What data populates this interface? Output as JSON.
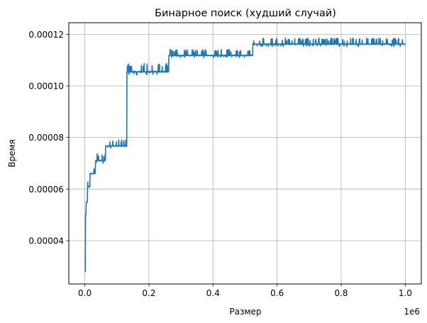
{
  "chart_data": {
    "type": "line",
    "title": "Бинарное поиск (худший случай)",
    "xlabel": "Размер",
    "ylabel": "Время",
    "x_offset_label": "1e6",
    "xlim": [
      -0.05,
      1.05
    ],
    "ylim": [
      2.32e-05,
      0.0001245
    ],
    "grid": true,
    "line_color": "#1f77b4",
    "x_ticks": [
      0.0,
      0.2,
      0.4,
      0.6,
      0.8,
      1.0
    ],
    "x_tick_labels": [
      "0.0",
      "0.2",
      "0.4",
      "0.6",
      "0.8",
      "1.0"
    ],
    "y_ticks": [
      4e-05,
      6e-05,
      8e-05,
      0.0001,
      0.00012
    ],
    "y_tick_labels": [
      "0.00004",
      "0.00006",
      "0.00008",
      "0.00010",
      "0.00012"
    ],
    "series": [
      {
        "x_units": "1e6",
        "steps": [
          {
            "x0": 0.0,
            "x1": 0.002,
            "y": 2.8e-05,
            "amp": 0.0
          },
          {
            "x0": 0.002,
            "x1": 0.004,
            "y": 5e-05,
            "amp": 1.5e-06
          },
          {
            "x0": 0.004,
            "x1": 0.008,
            "y": 5.5e-05,
            "amp": 1e-06
          },
          {
            "x0": 0.008,
            "x1": 0.016,
            "y": 6.1e-05,
            "amp": 1.2e-06
          },
          {
            "x0": 0.016,
            "x1": 0.033,
            "y": 6.6e-05,
            "amp": 1.2e-06
          },
          {
            "x0": 0.033,
            "x1": 0.065,
            "y": 7.1e-05,
            "amp": 1.4e-06
          },
          {
            "x0": 0.065,
            "x1": 0.131,
            "y": 7.67e-05,
            "amp": 1.2e-06
          },
          {
            "x0": 0.131,
            "x1": 0.262,
            "y": 0.0001055,
            "amp": 1.8e-06
          },
          {
            "x0": 0.262,
            "x1": 0.524,
            "y": 0.0001118,
            "amp": 1.2e-06
          },
          {
            "x0": 0.524,
            "x1": 1.0,
            "y": 0.0001162,
            "amp": 1.2e-06
          }
        ]
      }
    ]
  }
}
